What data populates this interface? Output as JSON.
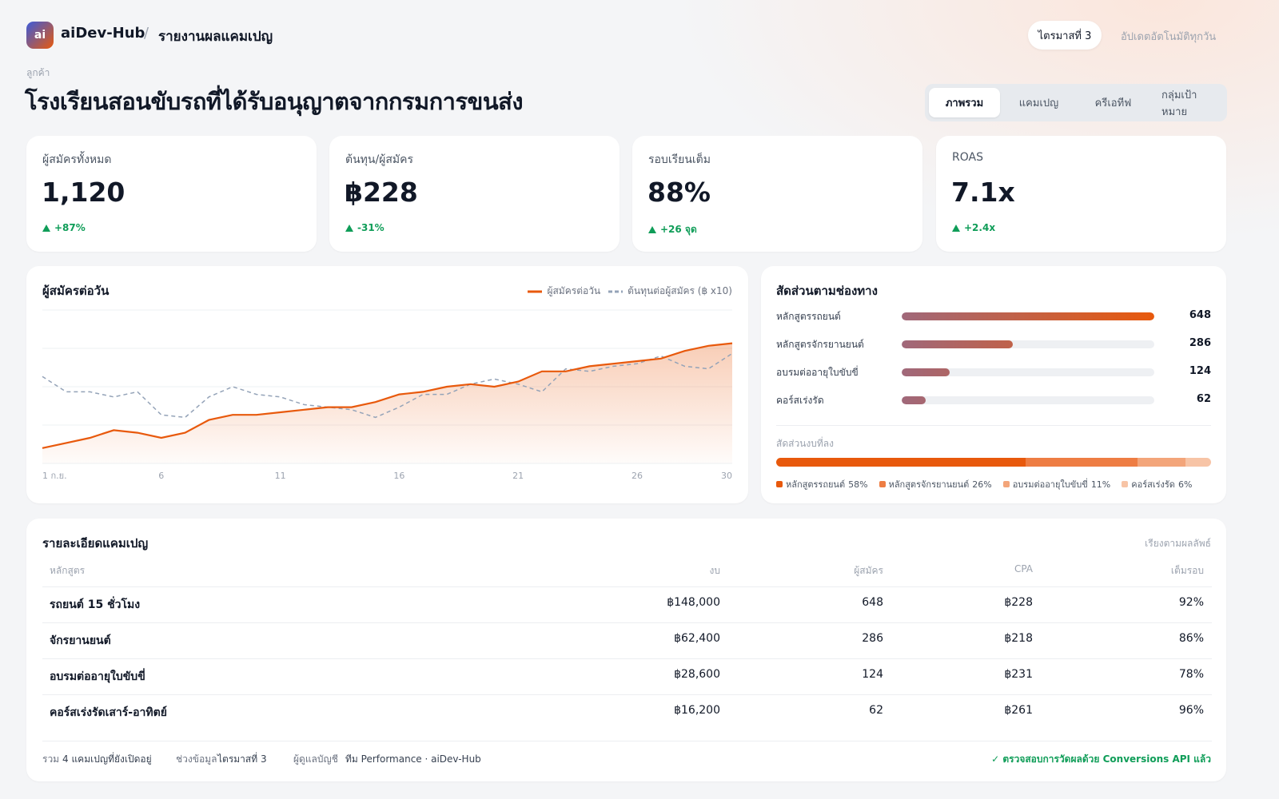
{
  "header": {
    "logo": "ai",
    "brand": "aiDev-Hub",
    "separator": "/",
    "page": "รายงานผลแคมเปญ",
    "period": "ไตรมาสที่ 3",
    "update": "อัปเดตอัตโนมัติทุกวัน"
  },
  "client": {
    "label": "ลูกค้า",
    "name": "โรงเรียนสอนขับรถที่ได้รับอนุญาตจากกรมการขนส่ง"
  },
  "tabs": [
    "ภาพรวม",
    "แคมเปญ",
    "ครีเอทีฟ",
    "กลุ่มเป้าหมาย"
  ],
  "kpis": [
    {
      "label": "ผู้สมัครทั้งหมด",
      "value": "1,120",
      "change": "+87%"
    },
    {
      "label": "ต้นทุน/ผู้สมัคร",
      "value": "฿228",
      "change": "-31%"
    },
    {
      "label": "รอบเรียนเต็ม",
      "value": "88%",
      "change": "+26 จุด"
    },
    {
      "label": "ROAS",
      "value": "7.1x",
      "change": "+2.4x"
    }
  ],
  "chart_data": [
    {
      "type": "line",
      "title": "ผู้สมัครต่อวัน",
      "x": [
        1,
        2,
        3,
        4,
        5,
        6,
        7,
        8,
        9,
        10,
        11,
        12,
        13,
        14,
        15,
        16,
        17,
        18,
        19,
        20,
        21,
        22,
        23,
        24,
        25,
        26,
        27,
        28,
        29,
        30
      ],
      "xlim": [
        1,
        30
      ],
      "xticks": [
        {
          "value": 1,
          "label": "1 ก.ย."
        },
        6,
        11,
        16,
        21,
        26,
        30
      ],
      "ylim": [
        0,
        60
      ],
      "yticks": [
        0,
        15,
        30,
        45,
        60
      ],
      "grid": true,
      "series": [
        {
          "name": "ผู้สมัครต่อวัน",
          "color": "#e8590c",
          "dashed": false,
          "values": [
            6,
            8,
            10,
            13,
            12,
            10,
            12,
            17,
            19,
            19,
            20,
            21,
            22,
            22,
            24,
            27,
            28,
            30,
            31,
            30,
            32,
            36,
            36,
            38,
            39,
            40,
            41,
            44,
            46,
            47
          ]
        },
        {
          "name": "ต้นทุนต่อผู้สมัคร (฿ x10)",
          "color": "#94a3b8",
          "dashed": true,
          "values": [
            34,
            28,
            28,
            26,
            28,
            19,
            18,
            26,
            30,
            27,
            26,
            23,
            22,
            21,
            18,
            22,
            27,
            27,
            31,
            33,
            31,
            28,
            37,
            36,
            38,
            39,
            42,
            38,
            37,
            43
          ]
        }
      ]
    },
    {
      "type": "bar",
      "orientation": "horizontal",
      "title": "สัดส่วนตามช่องทาง",
      "categories": [
        "หลักสูตรรถยนต์",
        "หลักสูตรจักรยานยนต์",
        "อบรมต่ออายุใบขับขี่",
        "คอร์สเร่งรัด"
      ],
      "values": [
        648,
        286,
        124,
        62
      ],
      "xlim": [
        0,
        648
      ],
      "color": "#e8590c"
    },
    {
      "type": "stacked_bar",
      "title": "สัดส่วนงบที่ลง",
      "categories": [
        "หลักสูตรรถยนต์",
        "หลักสูตรจักรยานยนต์",
        "อบรมต่ออายุใบขับขี่",
        "คอร์สเร่งรัด"
      ],
      "values": [
        58,
        26,
        11,
        6
      ],
      "value_labels": [
        "58%",
        "26%",
        "11%",
        "6%"
      ],
      "xlim": [
        0,
        101
      ],
      "colors": [
        "#e8590c",
        "#ee7d43",
        "#f3a57a",
        "#f7c4a6"
      ]
    }
  ],
  "table": {
    "title": "รายละเอียดแคมเปญ",
    "sort": "เรียงตามผลลัพธ์",
    "columns": [
      "หลักสูตร",
      "งบ",
      "ผู้สมัคร",
      "CPA",
      "เต็มรอบ"
    ],
    "rows": [
      [
        "รถยนต์ 15 ชั่วโมง",
        "฿148,000",
        "648",
        "฿228",
        "92%"
      ],
      [
        "จักรยานยนต์",
        "฿62,400",
        "286",
        "฿218",
        "86%"
      ],
      [
        "อบรมต่ออายุใบขับขี่",
        "฿28,600",
        "124",
        "฿231",
        "78%"
      ],
      [
        "คอร์สเร่งรัดเสาร์-อาทิตย์",
        "฿16,200",
        "62",
        "฿261",
        "96%"
      ]
    ]
  },
  "footer": {
    "items": [
      {
        "label": "รวม",
        "value": "4 แคมเปญที่ยังเปิดอยู่"
      },
      {
        "label": "ช่วงข้อมูล",
        "value": "ไตรมาสที่ 3"
      },
      {
        "label": "ผู้ดูแลบัญชี",
        "value": "ทีม Performance · aiDev-Hub"
      }
    ],
    "verified": "✓ ตรวจสอบการวัดผลด้วย Conversions API แล้ว"
  }
}
